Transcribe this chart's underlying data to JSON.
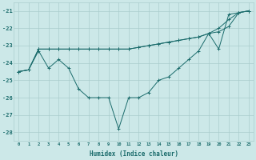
{
  "xlabel": "Humidex (Indice chaleur)",
  "x": [
    0,
    1,
    2,
    3,
    4,
    5,
    6,
    7,
    8,
    9,
    10,
    11,
    12,
    13,
    14,
    15,
    16,
    17,
    18,
    19,
    20,
    21,
    22,
    23
  ],
  "series1": [
    -24.5,
    -24.4,
    -23.2,
    -23.2,
    -23.2,
    -23.2,
    -23.2,
    -23.2,
    -23.2,
    -23.2,
    -23.2,
    -23.2,
    -23.1,
    -23.0,
    -22.9,
    -22.8,
    -22.7,
    -22.6,
    -22.5,
    -22.3,
    -22.2,
    -21.9,
    -21.1,
    -21.0
  ],
  "series2": [
    -24.5,
    -24.4,
    -23.2,
    -23.2,
    -23.2,
    -23.2,
    -23.2,
    -23.2,
    -23.2,
    -23.2,
    -23.2,
    -23.2,
    -23.1,
    -23.0,
    -22.9,
    -22.8,
    -22.7,
    -22.6,
    -22.5,
    -22.3,
    -22.0,
    -21.5,
    -21.1,
    -21.0
  ],
  "series3": [
    -24.5,
    -24.4,
    -23.3,
    -24.3,
    -23.8,
    -24.3,
    -25.5,
    -26.0,
    -26.0,
    -26.0,
    -27.8,
    -26.0,
    -26.0,
    -25.7,
    -25.0,
    -24.8,
    -24.3,
    -23.8,
    -23.3,
    -22.3,
    -23.2,
    -21.2,
    -21.1,
    -21.0
  ],
  "bg_color": "#cce8e8",
  "grid_color": "#aacccc",
  "line_color": "#1a6b6b",
  "ylim": [
    -28.5,
    -20.5
  ],
  "yticks": [
    -28,
    -27,
    -26,
    -25,
    -24,
    -23,
    -22,
    -21
  ],
  "xticks": [
    0,
    1,
    2,
    3,
    4,
    5,
    6,
    7,
    8,
    9,
    10,
    11,
    12,
    13,
    14,
    15,
    16,
    17,
    18,
    19,
    20,
    21,
    22,
    23
  ]
}
